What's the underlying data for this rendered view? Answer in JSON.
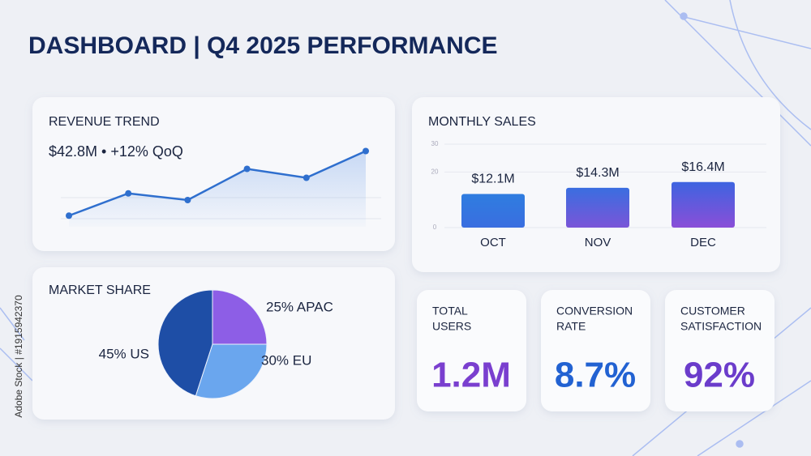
{
  "header": {
    "title": "DASHBOARD | Q4 2025 PERFORMANCE"
  },
  "watermark": "Adobe Stock | #1915942370",
  "chart_data": [
    {
      "type": "line",
      "title": "REVENUE TREND",
      "subtitle": "$42.8M • +12% QoQ",
      "categories": [
        null,
        null,
        null,
        null,
        null,
        null
      ],
      "values": [
        10,
        30,
        24,
        52,
        44,
        68
      ],
      "color": "#2f6fce",
      "ylim": [
        0,
        80
      ]
    },
    {
      "type": "bar",
      "title": "MONTHLY SALES",
      "categories": [
        "OCT",
        "NOV",
        "DEC"
      ],
      "values": [
        12.1,
        14.3,
        16.4
      ],
      "value_labels": [
        "$12.1M",
        "$14.3M",
        "$16.4M"
      ],
      "colors": [
        [
          "#2f7de0",
          "#3a6ee0"
        ],
        [
          "#3a6ee0",
          "#7a55d8"
        ],
        [
          "#3e64e0",
          "#8a4ed8"
        ]
      ],
      "ylim": [
        0,
        30
      ],
      "yticks": [
        0,
        20,
        30
      ],
      "grid": true
    },
    {
      "type": "pie",
      "title": "MARKET SHARE",
      "categories": [
        "APAC",
        "EU",
        "US"
      ],
      "values": [
        25,
        30,
        45
      ],
      "value_labels": [
        "25% APAC",
        "30% EU",
        "45% US"
      ],
      "colors": [
        "#8d5ee6",
        "#6aa6ee",
        "#1e4ea6"
      ]
    }
  ],
  "kpis": [
    {
      "label": [
        "TOTAL",
        "USERS"
      ],
      "value": "1.2M",
      "color": "#7a3fcf"
    },
    {
      "label": [
        "CONVERSION",
        "RATE"
      ],
      "value": "8.7%",
      "color": "#2262d2"
    },
    {
      "label": [
        "CUSTOMER",
        "SATISFACTION"
      ],
      "value": "92%",
      "color": "#6b3ccb"
    }
  ]
}
